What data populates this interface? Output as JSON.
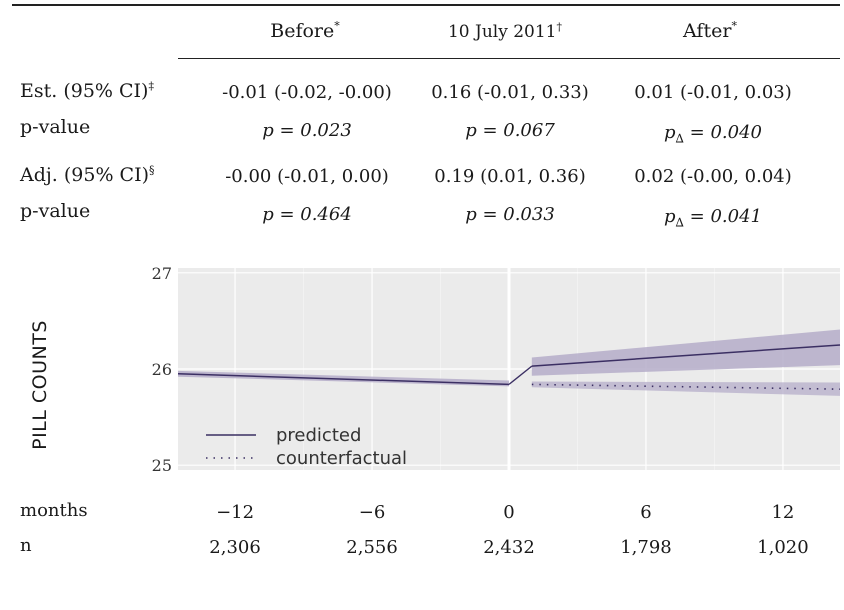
{
  "columns": [
    {
      "label": "Before",
      "mark": "*"
    },
    {
      "label": "10 July 2011",
      "mark": "†"
    },
    {
      "label": "After",
      "mark": "*"
    }
  ],
  "rows": {
    "est_label": "Est. (95% CI)",
    "est_mark": "‡",
    "est": [
      "-0.01 (-0.02, -0.00)",
      "0.16 (-0.01, 0.33)",
      "0.01 (-0.01, 0.03)"
    ],
    "pval_label": "p-value",
    "est_p": [
      "p = 0.023",
      "p = 0.067",
      "p∆ = 0.040"
    ],
    "adj_label": "Adj. (95% CI)",
    "adj_mark": "§",
    "adj": [
      "-0.00 (-0.01, 0.00)",
      "0.19 (0.01, 0.36)",
      "0.02 (-0.00, 0.04)"
    ],
    "adj_p": [
      "p = 0.464",
      "p = 0.033",
      "p∆ = 0.041"
    ]
  },
  "bottom": {
    "months_label": "months",
    "n_label": "n",
    "months": [
      "−12",
      "−6",
      "0",
      "6",
      "12"
    ],
    "n": [
      "2,306",
      "2,556",
      "2,432",
      "1,798",
      "1,020"
    ]
  },
  "colors": {
    "line": "#3b2f63",
    "band": "#b5adc9",
    "panel": "#ebebeb",
    "grid": "#ffffff"
  },
  "chart_data": {
    "type": "line",
    "ylabel": "PILL COUNTS",
    "xlabel": "months",
    "xlim": [
      -14.5,
      14.5
    ],
    "ylim": [
      24.95,
      27.05
    ],
    "yticks": [
      25,
      26,
      27
    ],
    "xticks": [
      -12,
      -6,
      0,
      6,
      12
    ],
    "grid": true,
    "legend": "bottom-left",
    "series": [
      {
        "name": "predicted",
        "style": "solid",
        "segments": [
          {
            "x": [
              -14.5,
              0
            ],
            "y": [
              25.95,
              25.84
            ],
            "lower": [
              25.92,
              25.82
            ],
            "upper": [
              25.98,
              25.88
            ]
          },
          {
            "x": [
              1,
              14.5
            ],
            "y": [
              26.03,
              26.25
            ],
            "lower": [
              25.93,
              26.04
            ],
            "upper": [
              26.12,
              26.41
            ]
          }
        ]
      },
      {
        "name": "counterfactual",
        "style": "dotted",
        "segments": [
          {
            "x": [
              1,
              14.5
            ],
            "y": [
              25.84,
              25.79
            ],
            "lower": [
              25.81,
              25.72
            ],
            "upper": [
              25.87,
              25.86
            ]
          }
        ]
      }
    ],
    "annotations": {
      "break_at": 0,
      "jump_from": [
        0,
        25.84
      ],
      "jump_to": [
        1,
        26.03
      ]
    }
  }
}
